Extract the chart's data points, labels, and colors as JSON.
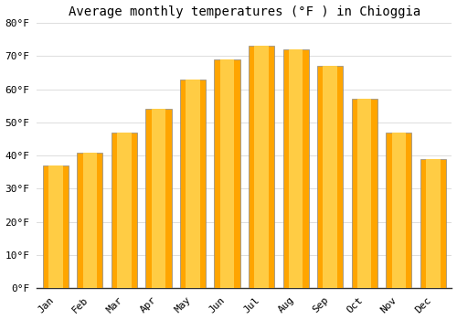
{
  "title": "Average monthly temperatures (°F ) in Chioggia",
  "months": [
    "Jan",
    "Feb",
    "Mar",
    "Apr",
    "May",
    "Jun",
    "Jul",
    "Aug",
    "Sep",
    "Oct",
    "Nov",
    "Dec"
  ],
  "values": [
    37,
    41,
    47,
    54,
    63,
    69,
    73,
    72,
    67,
    57,
    47,
    39
  ],
  "bar_color_center": "#FFCC44",
  "bar_color_edge": "#FFA500",
  "background_color": "#FFFFFF",
  "plot_bg_color": "#FFFFFF",
  "ylim": [
    0,
    80
  ],
  "yticks": [
    0,
    10,
    20,
    30,
    40,
    50,
    60,
    70,
    80
  ],
  "ytick_labels": [
    "0°F",
    "10°F",
    "20°F",
    "30°F",
    "40°F",
    "50°F",
    "60°F",
    "70°F",
    "80°F"
  ],
  "title_fontsize": 10,
  "tick_fontsize": 8,
  "grid_color": "#DDDDDD",
  "font_family": "monospace",
  "bar_width": 0.75,
  "spine_color": "#888888"
}
